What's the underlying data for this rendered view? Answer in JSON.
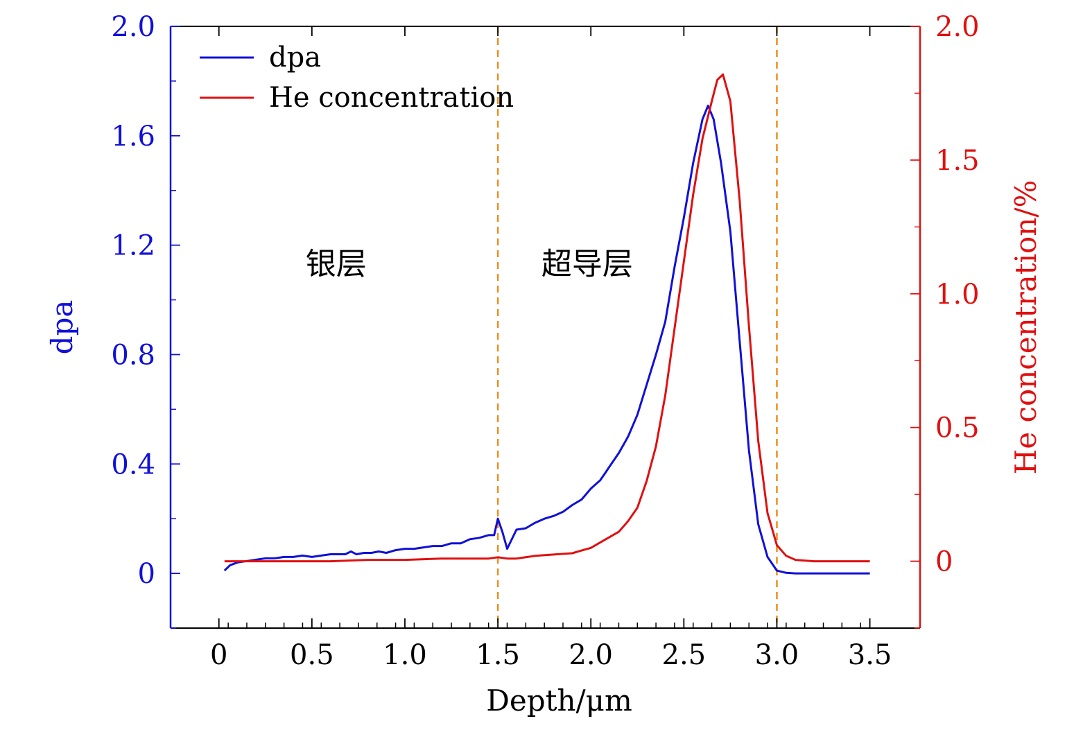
{
  "chart_data": {
    "type": "line",
    "title": "",
    "xlabel": "Depth/μm",
    "ylabel_left": "dpa",
    "ylabel_right": "He concentration/%",
    "xlim": [
      -0.26,
      3.77
    ],
    "ylim_left": [
      -0.2,
      2.0
    ],
    "ylim_right": [
      -0.25,
      2.0
    ],
    "x_ticks": [
      0,
      0.5,
      1.0,
      1.5,
      2.0,
      2.5,
      3.0,
      3.5
    ],
    "x_tick_labels": [
      "0",
      "0.5",
      "1.0",
      "1.5",
      "2.0",
      "2.5",
      "3.0",
      "3.5"
    ],
    "y_left_ticks": [
      0,
      0.4,
      0.8,
      1.2,
      1.6,
      2.0
    ],
    "y_left_tick_labels": [
      "0",
      "0.4",
      "0.8",
      "1.2",
      "1.6",
      "2.0"
    ],
    "y_right_ticks": [
      0,
      0.5,
      1.0,
      1.5,
      2.0
    ],
    "y_right_tick_labels": [
      "0",
      "0.5",
      "1.0",
      "1.5",
      "2.0"
    ],
    "vlines": [
      1.5,
      3.0
    ],
    "regions": [
      {
        "label": "银层",
        "x": 0.63,
        "y": 1.14
      },
      {
        "label": "超导层",
        "x": 1.98,
        "y": 1.14
      }
    ],
    "legend": {
      "position": "top-left"
    },
    "colors": {
      "dpa": "#1010d8",
      "he": "#e01010",
      "vline": "#f08c1c",
      "axis": "#000000"
    },
    "series": [
      {
        "name": "dpa",
        "axis": "left",
        "x": [
          0.03,
          0.06,
          0.1,
          0.15,
          0.2,
          0.25,
          0.3,
          0.35,
          0.4,
          0.45,
          0.5,
          0.55,
          0.6,
          0.65,
          0.68,
          0.71,
          0.74,
          0.78,
          0.82,
          0.86,
          0.9,
          0.95,
          1.0,
          1.05,
          1.1,
          1.15,
          1.2,
          1.25,
          1.3,
          1.35,
          1.4,
          1.45,
          1.48,
          1.5,
          1.525,
          1.55,
          1.6,
          1.65,
          1.7,
          1.75,
          1.8,
          1.85,
          1.9,
          1.95,
          2.0,
          2.05,
          2.08,
          2.1,
          2.15,
          2.2,
          2.25,
          2.3,
          2.35,
          2.4,
          2.45,
          2.5,
          2.55,
          2.6,
          2.63,
          2.66,
          2.7,
          2.75,
          2.8,
          2.85,
          2.9,
          2.95,
          3.0,
          3.05,
          3.1,
          3.2,
          3.3,
          3.4,
          3.5
        ],
        "y": [
          0.01,
          0.03,
          0.04,
          0.045,
          0.05,
          0.055,
          0.055,
          0.06,
          0.06,
          0.065,
          0.06,
          0.065,
          0.07,
          0.07,
          0.07,
          0.08,
          0.07,
          0.075,
          0.075,
          0.08,
          0.075,
          0.085,
          0.09,
          0.09,
          0.095,
          0.1,
          0.1,
          0.11,
          0.11,
          0.125,
          0.13,
          0.14,
          0.14,
          0.2,
          0.15,
          0.09,
          0.16,
          0.165,
          0.185,
          0.2,
          0.21,
          0.225,
          0.25,
          0.27,
          0.31,
          0.34,
          0.37,
          0.39,
          0.44,
          0.5,
          0.58,
          0.69,
          0.8,
          0.92,
          1.12,
          1.3,
          1.5,
          1.66,
          1.71,
          1.66,
          1.5,
          1.25,
          0.85,
          0.45,
          0.18,
          0.06,
          0.01,
          0.002,
          0,
          0,
          0,
          0,
          0
        ]
      },
      {
        "name": "He concentration",
        "axis": "right",
        "x": [
          0.03,
          0.2,
          0.4,
          0.6,
          0.8,
          1.0,
          1.2,
          1.4,
          1.45,
          1.5,
          1.55,
          1.6,
          1.7,
          1.8,
          1.9,
          1.95,
          2.0,
          2.05,
          2.1,
          2.15,
          2.2,
          2.25,
          2.3,
          2.35,
          2.4,
          2.45,
          2.5,
          2.55,
          2.6,
          2.65,
          2.68,
          2.71,
          2.75,
          2.8,
          2.85,
          2.9,
          2.95,
          3.0,
          3.05,
          3.1,
          3.2,
          3.3,
          3.4,
          3.5
        ],
        "y": [
          0.0,
          0.0,
          0.0,
          0.0,
          0.005,
          0.005,
          0.01,
          0.01,
          0.01,
          0.015,
          0.01,
          0.01,
          0.02,
          0.025,
          0.03,
          0.04,
          0.05,
          0.07,
          0.09,
          0.11,
          0.15,
          0.2,
          0.3,
          0.43,
          0.62,
          0.87,
          1.12,
          1.37,
          1.58,
          1.72,
          1.8,
          1.82,
          1.72,
          1.35,
          0.88,
          0.45,
          0.18,
          0.06,
          0.02,
          0.005,
          0.0,
          0.0,
          0.0,
          0.0
        ]
      }
    ]
  }
}
